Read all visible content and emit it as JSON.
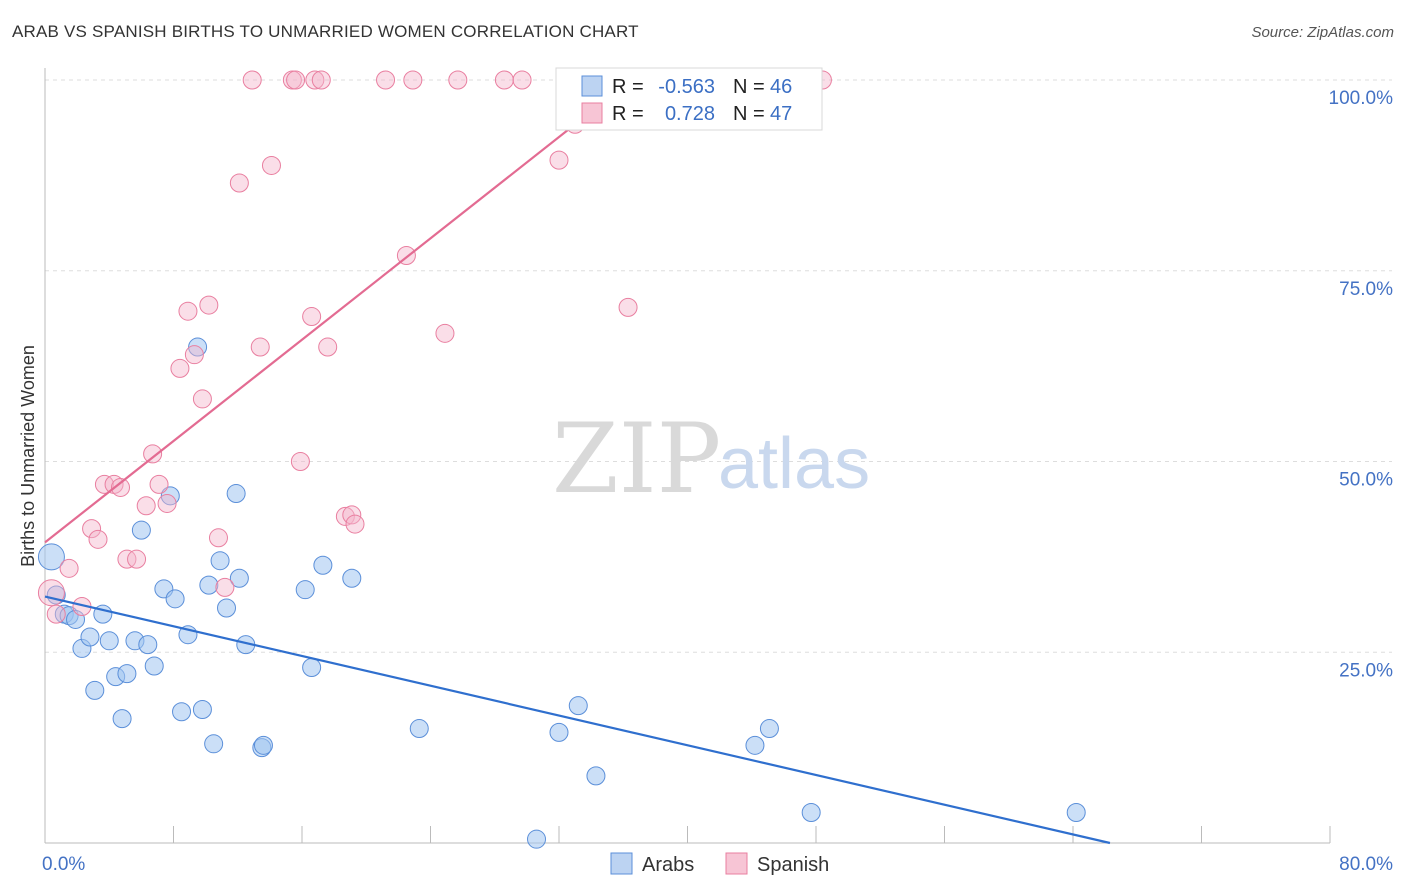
{
  "header": {
    "title": "ARAB VS SPANISH BIRTHS TO UNMARRIED WOMEN CORRELATION CHART",
    "source": "Source: ZipAtlas.com"
  },
  "watermark": {
    "zip": "ZIP",
    "atlas": "atlas"
  },
  "legend_stats": [
    {
      "series": "Arabs",
      "r_label": "R =",
      "r_value": "-0.563",
      "n_label": "N =",
      "n_value": "46"
    },
    {
      "series": "Spanish",
      "r_label": "R =",
      "r_value": "0.728",
      "n_label": "N =",
      "n_value": "47"
    }
  ],
  "chart_data": {
    "type": "scatter",
    "title": "ARAB VS SPANISH BIRTHS TO UNMARRIED WOMEN CORRELATION CHART",
    "xlabel": "",
    "ylabel": "Births to Unmarried Women",
    "xlim": [
      0,
      80
    ],
    "ylim": [
      0,
      100
    ],
    "x_tick_labels": [
      "0.0%",
      "80.0%"
    ],
    "y_ticks": [
      25,
      50,
      75,
      100
    ],
    "y_tick_labels": [
      "25.0%",
      "50.0%",
      "75.0%",
      "100.0%"
    ],
    "grid": true,
    "legend": [
      "Arabs",
      "Spanish"
    ],
    "colors": {
      "Arabs": "#5b8fd9",
      "Spanish": "#e97fa0",
      "Arabs_line": "#2f6fce",
      "Spanish_line": "#e36b92"
    },
    "series": [
      {
        "name": "Arabs",
        "trend": {
          "x": [
            0,
            66.3
          ],
          "y": [
            32.3,
            0
          ]
        },
        "points": [
          [
            0.4,
            37.5
          ],
          [
            0.7,
            32.5
          ],
          [
            1.2,
            30.0
          ],
          [
            1.5,
            29.8
          ],
          [
            1.9,
            29.3
          ],
          [
            2.3,
            25.5
          ],
          [
            2.8,
            27.0
          ],
          [
            3.1,
            20.0
          ],
          [
            3.6,
            30.0
          ],
          [
            4.0,
            26.5
          ],
          [
            4.4,
            21.8
          ],
          [
            4.8,
            16.3
          ],
          [
            5.1,
            22.2
          ],
          [
            5.6,
            26.5
          ],
          [
            6.0,
            41.0
          ],
          [
            6.4,
            26.0
          ],
          [
            6.8,
            23.2
          ],
          [
            7.4,
            33.3
          ],
          [
            7.8,
            45.5
          ],
          [
            8.1,
            32.0
          ],
          [
            8.5,
            17.2
          ],
          [
            8.9,
            27.3
          ],
          [
            9.5,
            65.0
          ],
          [
            9.8,
            17.5
          ],
          [
            10.2,
            33.8
          ],
          [
            10.5,
            13.0
          ],
          [
            10.9,
            37.0
          ],
          [
            11.3,
            30.8
          ],
          [
            11.9,
            45.8
          ],
          [
            12.1,
            34.7
          ],
          [
            12.5,
            26.0
          ],
          [
            13.5,
            12.5
          ],
          [
            13.6,
            12.8
          ],
          [
            16.2,
            33.2
          ],
          [
            16.6,
            23.0
          ],
          [
            17.3,
            36.4
          ],
          [
            19.1,
            34.7
          ],
          [
            23.3,
            15.0
          ],
          [
            30.6,
            0.5
          ],
          [
            32.0,
            14.5
          ],
          [
            33.2,
            18.0
          ],
          [
            34.3,
            8.8
          ],
          [
            44.2,
            12.8
          ],
          [
            45.1,
            15.0
          ],
          [
            47.7,
            4.0
          ],
          [
            64.2,
            4.0
          ]
        ]
      },
      {
        "name": "Spanish",
        "trend": {
          "x": [
            0,
            36.5
          ],
          "y": [
            39.4,
            100
          ]
        },
        "points": [
          [
            0.4,
            32.8
          ],
          [
            0.7,
            30.0
          ],
          [
            1.5,
            36.0
          ],
          [
            2.3,
            31.0
          ],
          [
            2.9,
            41.2
          ],
          [
            3.3,
            39.8
          ],
          [
            3.7,
            47.0
          ],
          [
            4.3,
            47.0
          ],
          [
            4.7,
            46.6
          ],
          [
            5.1,
            37.2
          ],
          [
            5.7,
            37.2
          ],
          [
            6.3,
            44.2
          ],
          [
            6.7,
            51.0
          ],
          [
            7.1,
            47.0
          ],
          [
            7.6,
            44.5
          ],
          [
            8.4,
            62.2
          ],
          [
            8.9,
            69.7
          ],
          [
            9.3,
            64.0
          ],
          [
            9.8,
            58.2
          ],
          [
            10.2,
            70.5
          ],
          [
            10.8,
            40.0
          ],
          [
            11.2,
            33.5
          ],
          [
            12.1,
            86.5
          ],
          [
            12.9,
            100.0
          ],
          [
            13.4,
            65.0
          ],
          [
            14.1,
            88.8
          ],
          [
            15.4,
            100.0
          ],
          [
            15.6,
            100.0
          ],
          [
            15.9,
            50.0
          ],
          [
            16.6,
            69.0
          ],
          [
            16.8,
            100.0
          ],
          [
            17.2,
            100.0
          ],
          [
            17.6,
            65.0
          ],
          [
            18.7,
            42.8
          ],
          [
            19.1,
            43.0
          ],
          [
            19.3,
            41.8
          ],
          [
            21.2,
            100.0
          ],
          [
            22.5,
            77.0
          ],
          [
            22.9,
            100.0
          ],
          [
            24.9,
            66.8
          ],
          [
            25.7,
            100.0
          ],
          [
            28.6,
            100.0
          ],
          [
            29.7,
            100.0
          ],
          [
            32.0,
            89.5
          ],
          [
            33.0,
            94.2
          ],
          [
            36.3,
            70.2
          ],
          [
            48.4,
            100.0
          ]
        ]
      }
    ]
  }
}
